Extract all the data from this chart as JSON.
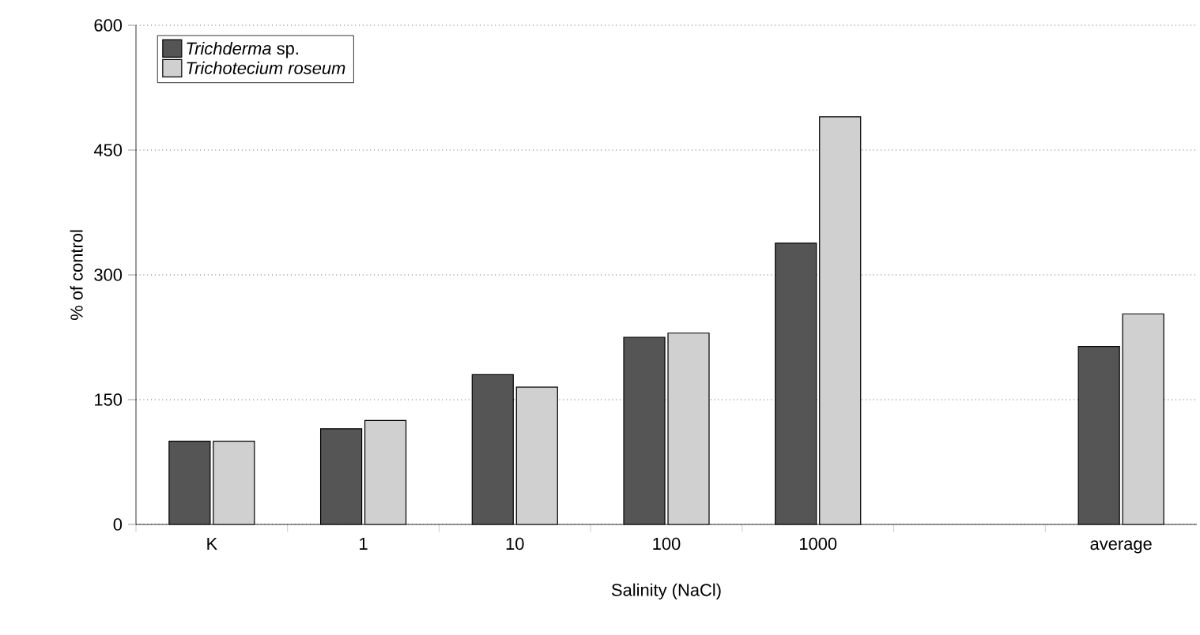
{
  "chart_data": {
    "type": "bar",
    "xlabel": "Salinity (NaCl)",
    "ylabel": "% of control",
    "categories": [
      "K",
      "1",
      "10",
      "100",
      "1000",
      null,
      "average"
    ],
    "series": [
      {
        "name": "*Trichderma* sp.",
        "color": "#555555",
        "values": [
          100,
          115,
          180,
          225,
          338,
          null,
          214
        ]
      },
      {
        "name": "*Trichotecium roseum*",
        "color": "#d0d0d0",
        "values": [
          100,
          125,
          165,
          230,
          490,
          null,
          253
        ]
      }
    ],
    "ylim": [
      0,
      600
    ],
    "yticks": [
      0,
      150,
      300,
      450,
      600
    ],
    "grid": "y",
    "legend": "top left"
  }
}
